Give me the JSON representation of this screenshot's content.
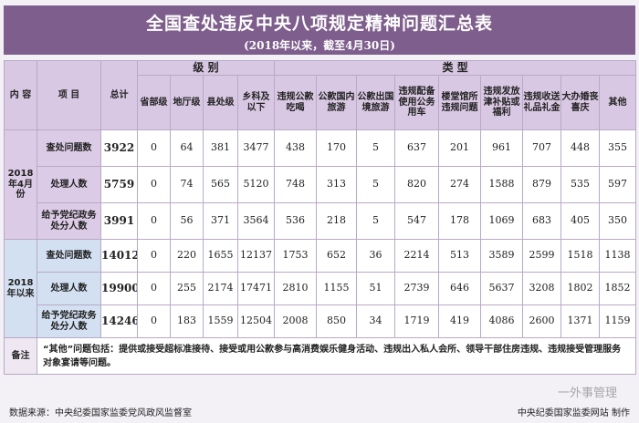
{
  "title": "全国查处违反中央八项规定精神问题汇总表",
  "subtitle": "(2018年以来，截至4月30日)",
  "header": {
    "content": "内 容",
    "item": "项 目",
    "total": "总计",
    "level_group": "级  别",
    "type_group": "类  型",
    "levels": [
      "省部级",
      "地厅级",
      "县处级",
      "乡科及以下"
    ],
    "types": [
      "违规公款吃喝",
      "公款国内旅游",
      "公款出国境旅游",
      "违规配备使用公务用车",
      "楼堂馆所违规问题",
      "违规发放津补贴或福利",
      "违规收送礼品礼金",
      "大办婚丧喜庆",
      "其他"
    ]
  },
  "periods": [
    {
      "label": "2018年4月份",
      "rows": [
        {
          "item": "查处问题数",
          "total": "3922",
          "levels": [
            "0",
            "64",
            "381",
            "3477"
          ],
          "types": [
            "438",
            "170",
            "5",
            "637",
            "201",
            "961",
            "707",
            "448",
            "355"
          ]
        },
        {
          "item": "处理人数",
          "total": "5759",
          "levels": [
            "0",
            "74",
            "565",
            "5120"
          ],
          "types": [
            "748",
            "313",
            "5",
            "820",
            "274",
            "1588",
            "879",
            "535",
            "597"
          ]
        },
        {
          "item": "给予党纪政务处分人数",
          "total": "3991",
          "levels": [
            "0",
            "56",
            "371",
            "3564"
          ],
          "types": [
            "536",
            "218",
            "5",
            "547",
            "178",
            "1069",
            "683",
            "405",
            "350"
          ]
        }
      ]
    },
    {
      "label": "2018年以来",
      "rows": [
        {
          "item": "查处问题数",
          "total": "14012",
          "levels": [
            "0",
            "220",
            "1655",
            "12137"
          ],
          "types": [
            "1753",
            "652",
            "36",
            "2214",
            "513",
            "3589",
            "2599",
            "1518",
            "1138"
          ]
        },
        {
          "item": "处理人数",
          "total": "19900",
          "levels": [
            "0",
            "255",
            "2174",
            "17471"
          ],
          "types": [
            "2810",
            "1155",
            "51",
            "2739",
            "646",
            "5637",
            "3208",
            "1802",
            "1852"
          ]
        },
        {
          "item": "给予党纪政务处分人数",
          "total": "14246",
          "levels": [
            "0",
            "183",
            "1559",
            "12504"
          ],
          "types": [
            "2008",
            "850",
            "34",
            "1719",
            "419",
            "4086",
            "2600",
            "1371",
            "1159"
          ]
        }
      ]
    }
  ],
  "note": {
    "label": "备注",
    "text": "“其他”问题包括：提供或接受超标准接待、接受或用公款参与高消费娱乐健身活动、违规出入私人会所、领导干部住房违规、违规接受管理服务对象宴请等问题。"
  },
  "footer": {
    "source": "数据来源：中央纪委国家监委党风政风监督室",
    "credit": "中央纪委国家监委网站 制作"
  },
  "watermark": "一外事管理",
  "colors": {
    "banner": "#7e5e8c",
    "header": "#d9c8e3",
    "period_a": "#dccbe6",
    "period_b": "#d3e0f2"
  }
}
